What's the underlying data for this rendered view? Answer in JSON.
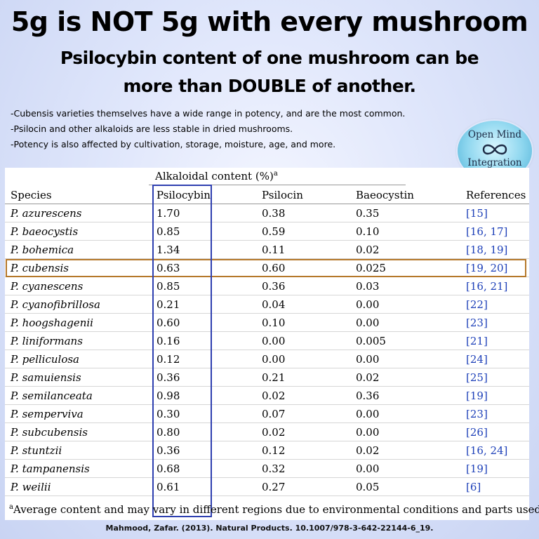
{
  "headline": {
    "line1": "5g is NOT 5g with every mushroom",
    "line2": "Psilocybin content of one mushroom can be",
    "line3": "more than DOUBLE of another."
  },
  "notes": [
    "-Cubensis varieties themselves have a wide range in potency, and are the most common.",
    "-Psilocin and other alkaloids are less stable in dried mushrooms.",
    "-Potency is also affected by cultivation, storage, moisture, age, and more."
  ],
  "logo": {
    "line1": "Open Mind",
    "line2": "Integration",
    "icon": "infinity-icon"
  },
  "table": {
    "group_header": "Alkaloidal content (%)",
    "group_header_sup": "a",
    "columns": [
      "Species",
      "Psilocybin",
      "Psilocin",
      "Baeocystin",
      "References"
    ],
    "rows": [
      {
        "species": "P. azurescens",
        "psilocybin": "1.70",
        "psilocin": "0.38",
        "baeocystin": "0.35",
        "refs": "[15]"
      },
      {
        "species": "P. baeocystis",
        "psilocybin": "0.85",
        "psilocin": "0.59",
        "baeocystin": "0.10",
        "refs": "[16, 17]"
      },
      {
        "species": "P. bohemica",
        "psilocybin": "1.34",
        "psilocin": "0.11",
        "baeocystin": "0.02",
        "refs": "[18, 19]"
      },
      {
        "species": "P. cubensis",
        "psilocybin": "0.63",
        "psilocin": "0.60",
        "baeocystin": "0.025",
        "refs": "[19, 20]"
      },
      {
        "species": "P. cyanescens",
        "psilocybin": "0.85",
        "psilocin": "0.36",
        "baeocystin": "0.03",
        "refs": "[16, 21]"
      },
      {
        "species": "P. cyanofibrillosa",
        "psilocybin": "0.21",
        "psilocin": "0.04",
        "baeocystin": "0.00",
        "refs": "[22]"
      },
      {
        "species": "P. hoogshagenii",
        "psilocybin": "0.60",
        "psilocin": "0.10",
        "baeocystin": "0.00",
        "refs": "[23]"
      },
      {
        "species": "P. liniformans",
        "psilocybin": "0.16",
        "psilocin": "0.00",
        "baeocystin": "0.005",
        "refs": "[21]"
      },
      {
        "species": "P. pelliculosa",
        "psilocybin": "0.12",
        "psilocin": "0.00",
        "baeocystin": "0.00",
        "refs": "[24]"
      },
      {
        "species": "P. samuiensis",
        "psilocybin": "0.36",
        "psilocin": "0.21",
        "baeocystin": "0.02",
        "refs": "[25]"
      },
      {
        "species": "P. semilanceata",
        "psilocybin": "0.98",
        "psilocin": "0.02",
        "baeocystin": "0.36",
        "refs": "[19]"
      },
      {
        "species": "P. semperviva",
        "psilocybin": "0.30",
        "psilocin": "0.07",
        "baeocystin": "0.00",
        "refs": "[23]"
      },
      {
        "species": "P. subcubensis",
        "psilocybin": "0.80",
        "psilocin": "0.02",
        "baeocystin": "0.00",
        "refs": "[26]"
      },
      {
        "species": "P. stuntzii",
        "psilocybin": "0.36",
        "psilocin": "0.12",
        "baeocystin": "0.02",
        "refs": "[16, 24]"
      },
      {
        "species": "P. tampanensis",
        "psilocybin": "0.68",
        "psilocin": "0.32",
        "baeocystin": "0.00",
        "refs": "[19]"
      },
      {
        "species": "P. weilii",
        "psilocybin": "0.61",
        "psilocin": "0.27",
        "baeocystin": "0.05",
        "refs": "[6]"
      }
    ],
    "highlighted_column": "Psilocybin",
    "highlighted_row": "P. cubensis",
    "footnote_sup": "a",
    "footnote": "Average content and may vary in different regions due to environmental conditions and parts used"
  },
  "citation": "Mahmood, Zafar. (2013). Natural Products. 10.1007/978-3-642-22144-6_19.",
  "colors": {
    "column_highlight": "#2e3fb0",
    "row_highlight": "#b5782a",
    "reference_link": "#1c3fb8",
    "logo_accent": "#4fb2d8"
  }
}
